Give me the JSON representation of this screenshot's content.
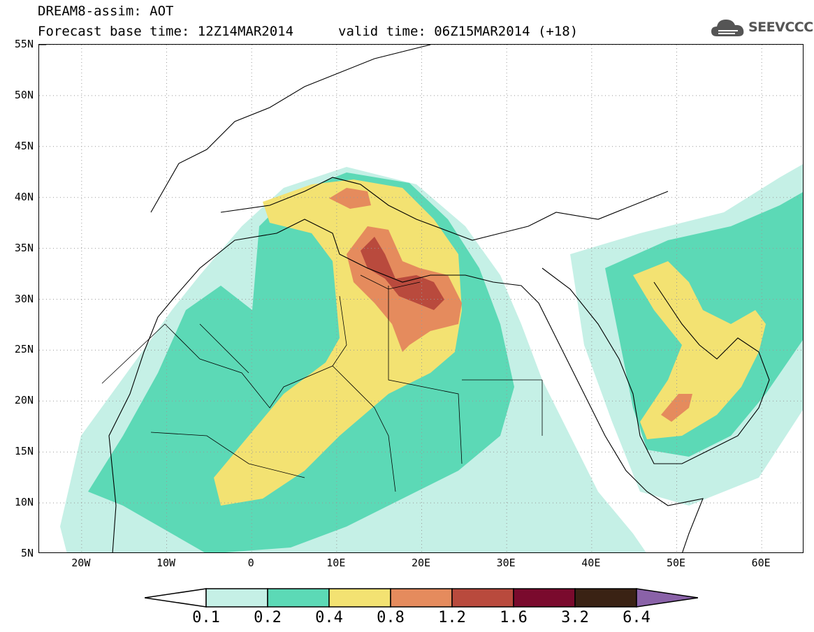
{
  "header": {
    "line1": "DREAM8-assim: AOT",
    "line2_base": "Forecast base time: 12Z14MAR2014",
    "line2_valid": "valid time: 06Z15MAR2014 (+18)",
    "logo_text": "SEEVCCC",
    "logo_icon": "cloud-icon"
  },
  "map": {
    "lon_range": [
      -25,
      65
    ],
    "lat_range": [
      5,
      55
    ],
    "lat_labels": [
      "55N",
      "50N",
      "45N",
      "40N",
      "35N",
      "30N",
      "25N",
      "20N",
      "15N",
      "10N",
      "5N"
    ],
    "lat_values": [
      55,
      50,
      45,
      40,
      35,
      30,
      25,
      20,
      15,
      10,
      5
    ],
    "lon_labels": [
      "20W",
      "10W",
      "0",
      "10E",
      "20E",
      "30E",
      "40E",
      "50E",
      "60E"
    ],
    "lon_values": [
      -20,
      -10,
      0,
      10,
      20,
      30,
      40,
      50,
      60
    ],
    "grid": "dotted"
  },
  "colorbar": {
    "colors": [
      "#c5f0e6",
      "#5cd9b6",
      "#f3e272",
      "#e58b5d",
      "#b94a3d",
      "#7a0a2d",
      "#3a2214",
      "#8a62a8"
    ],
    "labels": [
      "0.1",
      "0.2",
      "0.4",
      "0.8",
      "1.2",
      "1.6",
      "3.2",
      "6.4"
    ]
  }
}
